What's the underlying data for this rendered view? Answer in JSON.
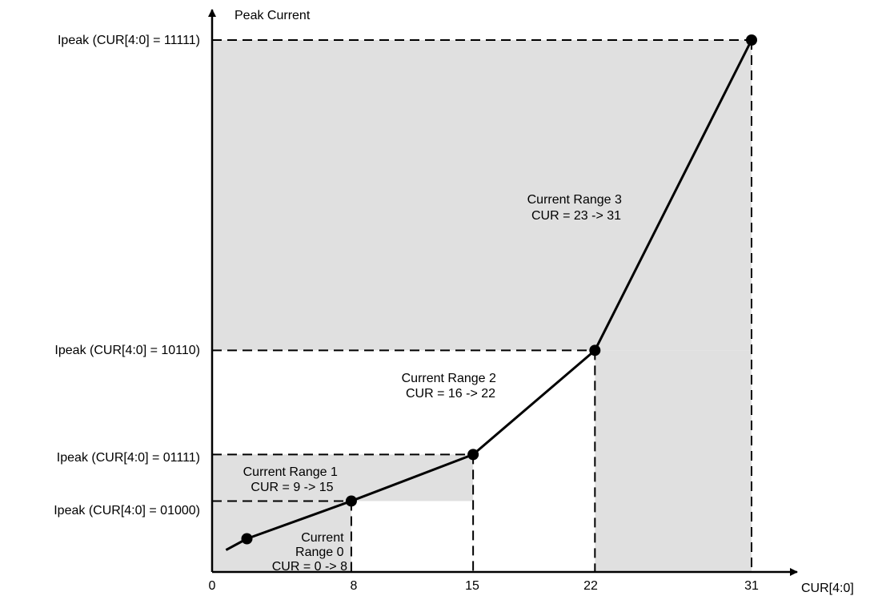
{
  "chart_data": {
    "type": "line",
    "ylabel": "Peak Current",
    "xlabel": "CUR[4:0]",
    "x_ticks": [
      "0",
      "8",
      "15",
      "22",
      "31"
    ],
    "y_ticks": [
      "Ipeak (CUR[4:0] = 01000)",
      "Ipeak (CUR[4:0] = 01111)",
      "Ipeak (CUR[4:0] = 10110)",
      "Ipeak (CUR[4:0] = 11111)"
    ],
    "xlim": [
      0,
      31
    ],
    "x": [
      2,
      8,
      15,
      22,
      31
    ],
    "y": [
      0.15,
      0.32,
      0.53,
      1.0,
      2.4
    ],
    "ylim": [
      0,
      2.4
    ],
    "shaded_regions": [
      {
        "x": [
          0,
          8
        ],
        "y": [
          0,
          0.32
        ]
      },
      {
        "x": [
          0,
          15
        ],
        "y": [
          0.32,
          0.53
        ]
      },
      {
        "x": [
          22,
          31
        ],
        "y": [
          0,
          1.0
        ]
      },
      {
        "x": [
          0,
          31
        ],
        "y": [
          1.0,
          2.4
        ]
      }
    ],
    "annotations": [
      {
        "lines": [
          "Current",
          "Range 0",
          "CUR = 0 -> 8"
        ]
      },
      {
        "lines": [
          "Current Range 1",
          "CUR = 9 -> 15"
        ]
      },
      {
        "lines": [
          "Current Range 2",
          "CUR = 16 -> 22"
        ]
      },
      {
        "lines": [
          "Current Range 3",
          "CUR = 23 -> 31"
        ]
      }
    ],
    "colors": {
      "shade": "#e0e0e0",
      "line": "#000000"
    }
  }
}
